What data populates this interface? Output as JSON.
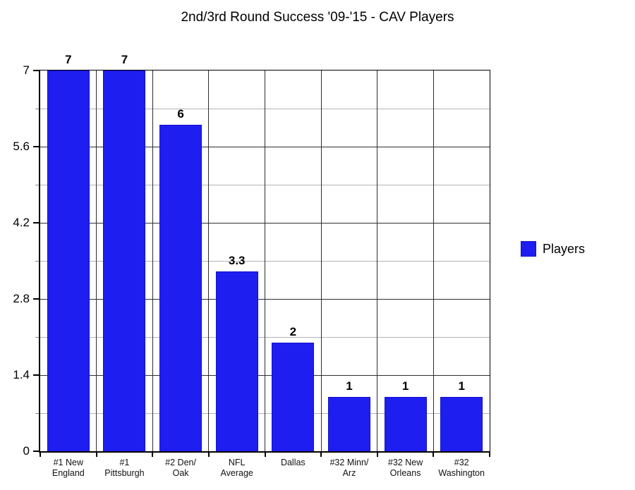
{
  "title": "2nd/3rd Round Success '09-'15 - CAV Players",
  "legend": {
    "label": "Players",
    "position": "right-middle"
  },
  "colors": {
    "bar": "#1e1ef0",
    "bar_border": "#1010cc",
    "grid_major": "#2e2e2e",
    "grid_minor": "#b3b3b3",
    "axis": "#000000",
    "background": "#ffffff"
  },
  "chart_data": {
    "type": "bar",
    "title": "2nd/3rd Round Success '09-'15 - CAV Players",
    "categories": [
      "#1 New England",
      "#1 Pittsburgh",
      "#2 Den/ Oak",
      "NFL Average",
      "Dallas",
      "#32 Minn/ Arz",
      "#32 New Orleans",
      "#32 Washington"
    ],
    "category_lines": [
      [
        "#1 New",
        "England"
      ],
      [
        "#1",
        "Pittsburgh"
      ],
      [
        "#2 Den/",
        "Oak"
      ],
      [
        "NFL",
        "Average"
      ],
      [
        "Dallas"
      ],
      [
        "#32 Minn/",
        "Arz"
      ],
      [
        "#32 New",
        "Orleans"
      ],
      [
        "#32",
        "Washington"
      ]
    ],
    "series": [
      {
        "name": "Players",
        "values": [
          7,
          7,
          6,
          3.3,
          2,
          1,
          1,
          1
        ]
      }
    ],
    "bar_labels": [
      "7",
      "7",
      "6",
      "3.3",
      "2",
      "1",
      "1",
      "1"
    ],
    "xlabel": "",
    "ylabel": "",
    "ylim": [
      0,
      7
    ],
    "y_major_ticks": [
      0,
      1.4,
      2.8,
      4.2,
      5.6,
      7
    ],
    "y_major_tick_labels": [
      "0",
      "1.4",
      "2.8",
      "4.2",
      "5.6",
      "7"
    ],
    "y_minor_ticks": [
      0.7,
      2.1,
      3.5,
      4.9,
      6.3
    ],
    "grid": "horizontal major (dark) + minor (light), vertical category separators",
    "legend_position": "right-middle"
  }
}
